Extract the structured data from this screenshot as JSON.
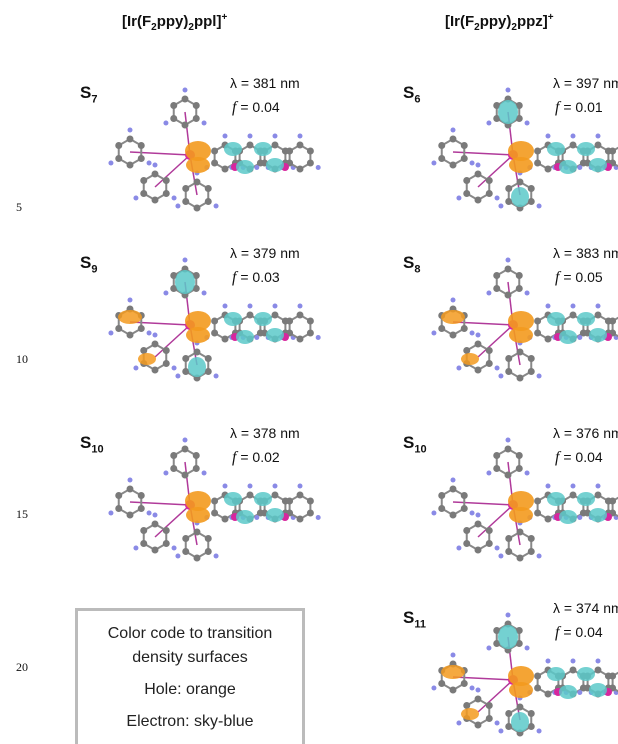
{
  "columns": [
    {
      "title_parts": [
        "[Ir(F",
        "2",
        "ppy)",
        "2",
        "ppl]",
        "+"
      ],
      "panels": [
        {
          "state": {
            "letter": "S",
            "sub": "7"
          },
          "wavelength": "λ = 381 nm",
          "oscillator": {
            "symbol": "f",
            "value": "= 0.04"
          }
        },
        {
          "state": {
            "letter": "S",
            "sub": "9"
          },
          "wavelength": "λ = 379 nm",
          "oscillator": {
            "symbol": "f",
            "value": "= 0.03"
          }
        },
        {
          "state": {
            "letter": "S",
            "sub": "10"
          },
          "wavelength": "λ = 378 nm",
          "oscillator": {
            "symbol": "f",
            "value": "= 0.02"
          }
        }
      ]
    },
    {
      "title_parts": [
        "[Ir(F",
        "2",
        "ppy)",
        "2",
        "ppz]",
        "+"
      ],
      "panels": [
        {
          "state": {
            "letter": "S",
            "sub": "6"
          },
          "wavelength": "λ = 397 nm",
          "oscillator": {
            "symbol": "f",
            "value": "= 0.01"
          }
        },
        {
          "state": {
            "letter": "S",
            "sub": "8"
          },
          "wavelength": "λ = 383 nm",
          "oscillator": {
            "symbol": "f",
            "value": "= 0.05"
          }
        },
        {
          "state": {
            "letter": "S",
            "sub": "10"
          },
          "wavelength": "λ = 376 nm",
          "oscillator": {
            "symbol": "f",
            "value": "= 0.04"
          }
        },
        {
          "state": {
            "letter": "S",
            "sub": "11"
          },
          "wavelength": "λ = 374 nm",
          "oscillator": {
            "symbol": "f",
            "value": "= 0.04"
          }
        }
      ]
    }
  ],
  "line_numbers": [
    "5",
    "10",
    "15",
    "20"
  ],
  "legend": {
    "lines": [
      "Color code to transition",
      "density surfaces",
      "Hole: orange",
      "Electron: sky-blue"
    ]
  }
}
